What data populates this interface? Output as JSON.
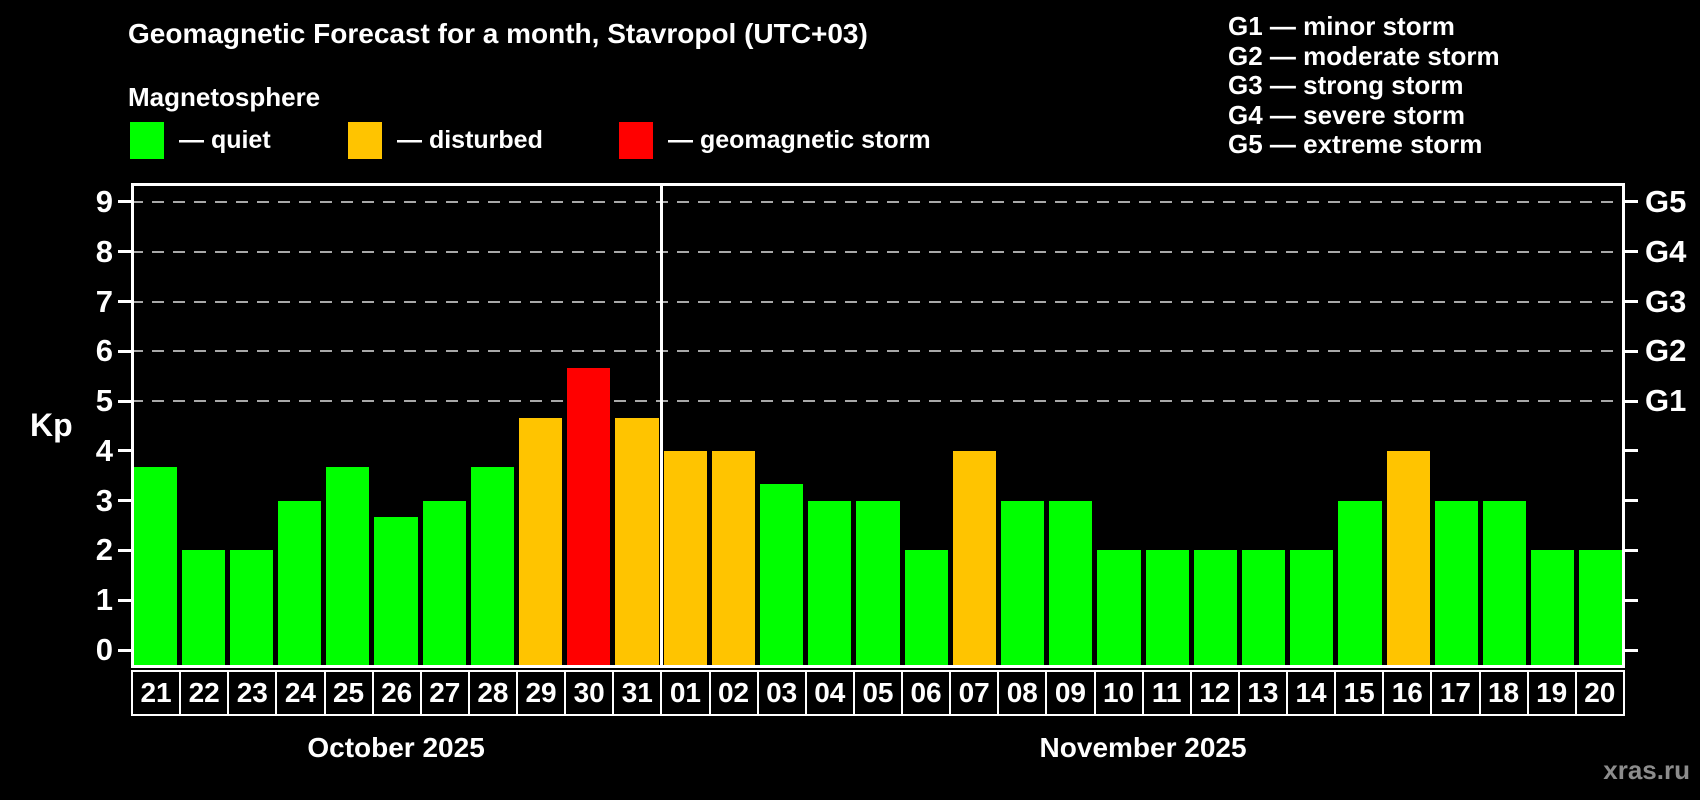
{
  "title": "Geomagnetic Forecast for a month, Stavropol (UTC+03)",
  "subtitle": "Magnetosphere",
  "legend": {
    "items": [
      {
        "name": "quiet",
        "label": "— quiet",
        "color": "#00ff00"
      },
      {
        "name": "disturbed",
        "label": "— disturbed",
        "color": "#ffc400"
      },
      {
        "name": "storm",
        "label": "— geomagnetic storm",
        "color": "#ff0000"
      }
    ]
  },
  "storm_legend": {
    "lines": [
      "G1 — minor storm",
      "G2 — moderate storm",
      "G3 — strong storm",
      "G4 — severe storm",
      "G5 — extreme storm"
    ]
  },
  "watermark": "xras.ru",
  "chart_data": {
    "type": "bar",
    "ylabel": "Kp",
    "ylim": [
      0,
      9.4
    ],
    "yticks": [
      0,
      1,
      2,
      3,
      4,
      5,
      6,
      7,
      8,
      9
    ],
    "gridlines_kp": [
      5,
      6,
      7,
      8,
      9
    ],
    "right_axis_labels": [
      {
        "label": "G1",
        "kp": 5
      },
      {
        "label": "G2",
        "kp": 6
      },
      {
        "label": "G3",
        "kp": 7
      },
      {
        "label": "G4",
        "kp": 8
      },
      {
        "label": "G5",
        "kp": 9
      }
    ],
    "grid": "dashed horizontal at storm levels only",
    "legend_position": "top",
    "months": [
      {
        "label": "October 2025",
        "days": 11
      },
      {
        "label": "November 2025",
        "days": 20
      }
    ],
    "categories": [
      "21",
      "22",
      "23",
      "24",
      "25",
      "26",
      "27",
      "28",
      "29",
      "30",
      "31",
      "01",
      "02",
      "03",
      "04",
      "05",
      "06",
      "07",
      "08",
      "09",
      "10",
      "11",
      "12",
      "13",
      "14",
      "15",
      "16",
      "17",
      "18",
      "19",
      "20"
    ],
    "values": [
      3.67,
      2,
      2,
      3,
      3.67,
      2.67,
      3,
      3.67,
      4.67,
      5.67,
      4.67,
      4,
      4,
      3.33,
      3,
      3,
      2,
      4,
      3,
      3,
      2,
      2,
      2,
      2,
      2,
      3,
      4,
      3,
      3,
      2,
      2
    ],
    "statuses": [
      "quiet",
      "quiet",
      "quiet",
      "quiet",
      "quiet",
      "quiet",
      "quiet",
      "quiet",
      "disturbed",
      "storm",
      "disturbed",
      "disturbed",
      "disturbed",
      "quiet",
      "quiet",
      "quiet",
      "quiet",
      "disturbed",
      "quiet",
      "quiet",
      "quiet",
      "quiet",
      "quiet",
      "quiet",
      "quiet",
      "quiet",
      "disturbed",
      "quiet",
      "quiet",
      "quiet",
      "quiet"
    ],
    "colors": {
      "quiet": "#00ff00",
      "disturbed": "#ffc400",
      "storm": "#ff0000"
    }
  }
}
